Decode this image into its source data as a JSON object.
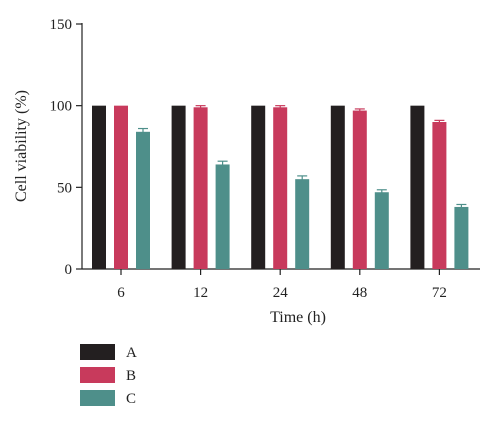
{
  "chart_data": {
    "type": "bar",
    "xlabel": "Time (h)",
    "ylabel": "Cell viability (%)",
    "categories": [
      "6",
      "12",
      "24",
      "48",
      "72"
    ],
    "ylim": [
      0,
      150
    ],
    "yticks": [
      0,
      50,
      100,
      150
    ],
    "legend_position": "bottom-left",
    "grid": false,
    "error_bars": true,
    "series": [
      {
        "name": "A",
        "color": "#231f20",
        "values": [
          100,
          100,
          100,
          100,
          100
        ],
        "errors": [
          0,
          0,
          0,
          0,
          0
        ]
      },
      {
        "name": "B",
        "color": "#c83a5c",
        "values": [
          100,
          99,
          99,
          97,
          90
        ],
        "errors": [
          0,
          1,
          1,
          1,
          1
        ]
      },
      {
        "name": "C",
        "color": "#4e8f8a",
        "values": [
          84,
          64,
          55,
          47,
          38
        ],
        "errors": [
          2,
          2,
          2,
          1.5,
          1.5
        ]
      }
    ]
  }
}
